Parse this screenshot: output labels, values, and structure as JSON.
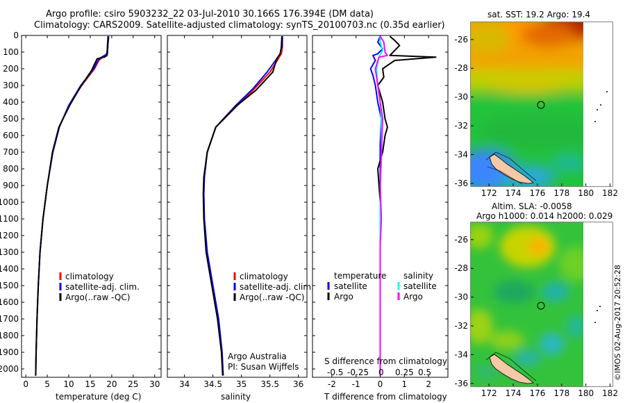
{
  "header": {
    "line1": "Argo profile: csiro 5903232_22 03-Jul-2010 30.166S 176.394E (DM data)",
    "line2": "Climatology: CARS2009. Satellite-adjusted climatology: synTS_20100703.nc (0.35d earlier)"
  },
  "colors": {
    "climatology": "#ff0000",
    "satellite": "#0000ff",
    "argo": "#000000",
    "temp_satellite": "#0000ff",
    "sal_satellite": "#00ffff",
    "sal_argo": "#ff00ff"
  },
  "legend": {
    "climatology": "climatology",
    "satellite_adj": "satellite-adj. clim.",
    "argo": "Argo(..raw -QC)",
    "temperature_head": "temperature",
    "salinity_head": "salinity",
    "satellite": "satellite",
    "argo_short": "Argo"
  },
  "annotations": {
    "argo_australia": "Argo Australia",
    "pi": "PI: Susan Wijffels",
    "s_diff_label": "S difference from climatology",
    "s_diff_ticks": [
      "-0.5",
      "-0.25",
      "0",
      "0.25",
      "0.5"
    ],
    "sst_title": "sat. SST: 19.2 Argo: 19.4",
    "sla_title1": "Altim. SLA: -0.0058",
    "sla_title2": "Argo h1000: 0.014 h2000: 0.029",
    "stamp": "©IMOS 02-Aug-2017 20:52:28"
  },
  "chart_data": [
    {
      "type": "line",
      "name": "temperature",
      "xlabel": "temperature (deg C)",
      "ylabel": "",
      "xlim": [
        -1,
        31.5
      ],
      "ylim": [
        2050,
        0
      ],
      "xticks": [
        0,
        5,
        10,
        15,
        20,
        25,
        30
      ],
      "yticks": [
        0,
        100,
        200,
        300,
        400,
        500,
        600,
        700,
        800,
        900,
        1000,
        1100,
        1200,
        1300,
        1400,
        1500,
        1600,
        1700,
        1800,
        1900,
        2000
      ],
      "series": [
        {
          "name": "climatology",
          "color_key": "climatology",
          "points": [
            [
              2.3,
              2040
            ],
            [
              2.4,
              1900
            ],
            [
              2.6,
              1700
            ],
            [
              2.9,
              1500
            ],
            [
              3.3,
              1300
            ],
            [
              4,
              1100
            ],
            [
              5,
              900
            ],
            [
              6.3,
              700
            ],
            [
              7.8,
              550
            ],
            [
              10,
              420
            ],
            [
              13,
              300
            ],
            [
              16,
              200
            ],
            [
              17,
              150
            ],
            [
              18.8,
              110
            ],
            [
              19.1,
              70
            ],
            [
              19.1,
              5
            ]
          ]
        },
        {
          "name": "satellite-adj. clim.",
          "color_key": "satellite",
          "points": [
            [
              2.3,
              2040
            ],
            [
              2.4,
              1900
            ],
            [
              2.6,
              1700
            ],
            [
              2.9,
              1500
            ],
            [
              3.3,
              1300
            ],
            [
              4,
              1100
            ],
            [
              5,
              900
            ],
            [
              6.3,
              700
            ],
            [
              7.8,
              550
            ],
            [
              10,
              420
            ],
            [
              12.8,
              300
            ],
            [
              15.8,
              200
            ],
            [
              17,
              140
            ],
            [
              19,
              110
            ],
            [
              19.1,
              60
            ],
            [
              19.3,
              5
            ]
          ]
        },
        {
          "name": "Argo",
          "color_key": "argo",
          "points": [
            [
              2.3,
              2040
            ],
            [
              2.4,
              1900
            ],
            [
              2.6,
              1700
            ],
            [
              2.9,
              1500
            ],
            [
              3.3,
              1300
            ],
            [
              4,
              1100
            ],
            [
              5,
              900
            ],
            [
              6.2,
              700
            ],
            [
              7.7,
              550
            ],
            [
              10.2,
              420
            ],
            [
              12.7,
              310
            ],
            [
              15.3,
              210
            ],
            [
              16.6,
              140
            ],
            [
              18.3,
              130
            ],
            [
              18.9,
              120
            ],
            [
              19,
              60
            ],
            [
              19.2,
              5
            ]
          ]
        }
      ],
      "legend": [
        "climatology",
        "satellite-adj. clim.",
        "Argo(..raw -QC)"
      ]
    },
    {
      "type": "line",
      "name": "salinity",
      "xlabel": "salinity",
      "ylabel": "",
      "xlim": [
        33.7,
        36.15
      ],
      "ylim": [
        2050,
        0
      ],
      "xticks": [
        34,
        34.5,
        35,
        35.5,
        36
      ],
      "series": [
        {
          "name": "climatology",
          "color_key": "climatology",
          "points": [
            [
              34.68,
              2040
            ],
            [
              34.66,
              1900
            ],
            [
              34.6,
              1700
            ],
            [
              34.5,
              1500
            ],
            [
              34.4,
              1300
            ],
            [
              34.35,
              1100
            ],
            [
              34.34,
              950
            ],
            [
              34.35,
              850
            ],
            [
              34.4,
              700
            ],
            [
              34.55,
              550
            ],
            [
              34.9,
              430
            ],
            [
              35.2,
              330
            ],
            [
              35.5,
              220
            ],
            [
              35.63,
              150
            ],
            [
              35.7,
              110
            ],
            [
              35.72,
              70
            ],
            [
              35.72,
              5
            ]
          ]
        },
        {
          "name": "satellite-adj. clim.",
          "color_key": "satellite",
          "points": [
            [
              34.68,
              2040
            ],
            [
              34.66,
              1900
            ],
            [
              34.6,
              1700
            ],
            [
              34.5,
              1500
            ],
            [
              34.4,
              1300
            ],
            [
              34.35,
              1100
            ],
            [
              34.34,
              950
            ],
            [
              34.35,
              850
            ],
            [
              34.4,
              700
            ],
            [
              34.55,
              550
            ],
            [
              34.9,
              420
            ],
            [
              35.2,
              320
            ],
            [
              35.45,
              220
            ],
            [
              35.62,
              140
            ],
            [
              35.68,
              110
            ],
            [
              35.71,
              70
            ],
            [
              35.72,
              5
            ]
          ]
        },
        {
          "name": "Argo",
          "color_key": "argo",
          "points": [
            [
              34.67,
              2040
            ],
            [
              34.65,
              1900
            ],
            [
              34.58,
              1700
            ],
            [
              34.48,
              1500
            ],
            [
              34.38,
              1300
            ],
            [
              34.34,
              1100
            ],
            [
              34.33,
              950
            ],
            [
              34.34,
              850
            ],
            [
              34.4,
              700
            ],
            [
              34.55,
              550
            ],
            [
              34.92,
              420
            ],
            [
              35.25,
              330
            ],
            [
              35.55,
              220
            ],
            [
              35.62,
              140
            ],
            [
              35.68,
              110
            ],
            [
              35.7,
              70
            ],
            [
              35.71,
              5
            ]
          ]
        }
      ],
      "legend": [
        "climatology",
        "satellite-adj. clim.",
        "Argo(..raw -QC)"
      ]
    },
    {
      "type": "line",
      "name": "difference",
      "xlabel": "T difference from climatology",
      "ylabel": "",
      "xlim": [
        -2.8,
        2.8
      ],
      "ylim": [
        2050,
        0
      ],
      "xticks": [
        -2,
        -1,
        0,
        1,
        2
      ],
      "series": [
        {
          "name": "temperature satellite",
          "color_key": "temp_satellite",
          "points": [
            [
              0,
              2040
            ],
            [
              0,
              1500
            ],
            [
              0,
              1100
            ],
            [
              0,
              800
            ],
            [
              0,
              650
            ],
            [
              0.05,
              500
            ],
            [
              -0.1,
              400
            ],
            [
              -0.2,
              300
            ],
            [
              -0.3,
              240
            ],
            [
              -0.4,
              200
            ],
            [
              -0.2,
              150
            ],
            [
              -0.3,
              120
            ],
            [
              -0.1,
              110
            ],
            [
              0.1,
              80
            ],
            [
              -0.1,
              40
            ],
            [
              0,
              5
            ]
          ]
        },
        {
          "name": "temperature Argo",
          "color_key": "argo",
          "points": [
            [
              0,
              2040
            ],
            [
              0,
              1500
            ],
            [
              0,
              1000
            ],
            [
              -0.05,
              900
            ],
            [
              -0.1,
              800
            ],
            [
              0.1,
              700
            ],
            [
              0.2,
              600
            ],
            [
              0.3,
              550
            ],
            [
              0.2,
              500
            ],
            [
              0.1,
              400
            ],
            [
              -0.1,
              300
            ],
            [
              0.15,
              250
            ],
            [
              0.1,
              200
            ],
            [
              0.3,
              180
            ],
            [
              0.6,
              150
            ],
            [
              2.3,
              130
            ],
            [
              0.4,
              120
            ],
            [
              0.8,
              60
            ],
            [
              0.6,
              30
            ],
            [
              0.4,
              5
            ]
          ]
        },
        {
          "name": "salinity satellite",
          "color_key": "sal_satellite",
          "points": [
            [
              0,
              2040
            ],
            [
              0,
              1500
            ],
            [
              0,
              1000
            ],
            [
              0.05,
              700
            ],
            [
              0.05,
              500
            ],
            [
              0,
              400
            ],
            [
              -0.1,
              300
            ],
            [
              -0.15,
              200
            ],
            [
              -0.05,
              130
            ],
            [
              0.1,
              90
            ],
            [
              0,
              40
            ],
            [
              0,
              5
            ]
          ]
        },
        {
          "name": "salinity Argo",
          "color_key": "sal_argo",
          "points": [
            [
              0,
              2040
            ],
            [
              0,
              1500
            ],
            [
              0,
              1250
            ],
            [
              0.05,
              1100
            ],
            [
              0,
              900
            ],
            [
              0.05,
              700
            ],
            [
              0.1,
              500
            ],
            [
              0,
              400
            ],
            [
              -0.1,
              300
            ],
            [
              -0.2,
              200
            ],
            [
              -0.05,
              130
            ],
            [
              0.3,
              120
            ],
            [
              0.2,
              100
            ],
            [
              0.15,
              40
            ],
            [
              0,
              5
            ]
          ]
        }
      ],
      "legend": [
        "temperature satellite",
        "temperature Argo",
        "salinity satellite",
        "salinity Argo"
      ]
    },
    {
      "type": "heatmap",
      "name": "sst_map",
      "title": "sat. SST: 19.2 Argo: 19.4",
      "xlim": [
        170.5,
        182.2
      ],
      "ylim": [
        -36.2,
        -24.8
      ],
      "xticks": [
        172,
        174,
        176,
        178,
        180,
        182
      ],
      "yticks": [
        -26,
        -28,
        -30,
        -32,
        -34,
        -36
      ],
      "marker": [
        176.4,
        -30.17
      ]
    },
    {
      "type": "heatmap",
      "name": "sla_map",
      "title": "Altim. SLA: -0.0058 / Argo h1000: 0.014 h2000: 0.029",
      "xlim": [
        170.5,
        182.2
      ],
      "ylim": [
        -36.2,
        -24.8
      ],
      "xticks": [
        172,
        174,
        176,
        178,
        180,
        182
      ],
      "yticks": [
        -26,
        -28,
        -30,
        -32,
        -34,
        -36
      ],
      "marker": [
        176.4,
        -30.17
      ]
    }
  ]
}
